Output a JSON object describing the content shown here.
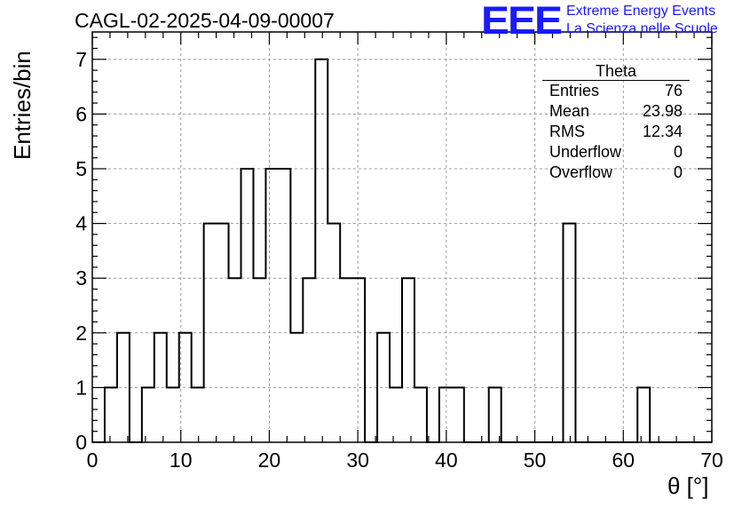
{
  "page_title": "CAGL-02-2025-04-09-00007",
  "logo": {
    "mark": "EEE",
    "line1": "Extreme Energy Events",
    "line2": "La Scienza nelle Scuole",
    "color": "#1a1aff"
  },
  "stats_box": {
    "title": "Theta",
    "rows": [
      {
        "label": "Entries",
        "value": "76"
      },
      {
        "label": "Mean",
        "value": "23.98"
      },
      {
        "label": "RMS",
        "value": "12.34"
      },
      {
        "label": "Underflow",
        "value": "0"
      },
      {
        "label": "Overflow",
        "value": "0"
      }
    ]
  },
  "chart_data": {
    "type": "bar",
    "title": "CAGL-02-2025-04-09-00007",
    "xlabel": "θ [°]",
    "ylabel": "Entries/bin",
    "xlim": [
      0,
      70
    ],
    "ylim": [
      0,
      7.5
    ],
    "xticks": [
      0,
      10,
      20,
      30,
      40,
      50,
      60,
      70
    ],
    "yticks": [
      0,
      1,
      2,
      3,
      4,
      5,
      6,
      7
    ],
    "grid": true,
    "bin_edges": [
      0,
      1.4,
      2.8,
      4.2,
      5.6,
      7,
      8.4,
      9.8,
      11.2,
      12.6,
      14,
      15.4,
      16.8,
      18.2,
      19.6,
      21,
      22.4,
      23.8,
      25.2,
      26.6,
      28,
      29.4,
      30.8,
      32.2,
      33.6,
      35,
      36.4,
      37.8,
      39.2,
      40.6,
      42,
      43.4,
      44.8,
      46.2,
      47.6,
      49,
      50.4,
      51.8,
      53.2,
      54.6,
      56,
      57.4,
      58.8,
      60.2,
      61.6,
      63,
      64.4,
      65.8,
      67.2,
      68.6,
      70
    ],
    "values": [
      0,
      1,
      2,
      0,
      1,
      2,
      1,
      2,
      1,
      4,
      4,
      3,
      5,
      3,
      5,
      5,
      2,
      3,
      7,
      4,
      3,
      3,
      0,
      2,
      1,
      3,
      1,
      0,
      1,
      1,
      0,
      0,
      1,
      0,
      0,
      0,
      0,
      0,
      4,
      0,
      0,
      0,
      0,
      0,
      1,
      0,
      0,
      0,
      0,
      0
    ]
  }
}
